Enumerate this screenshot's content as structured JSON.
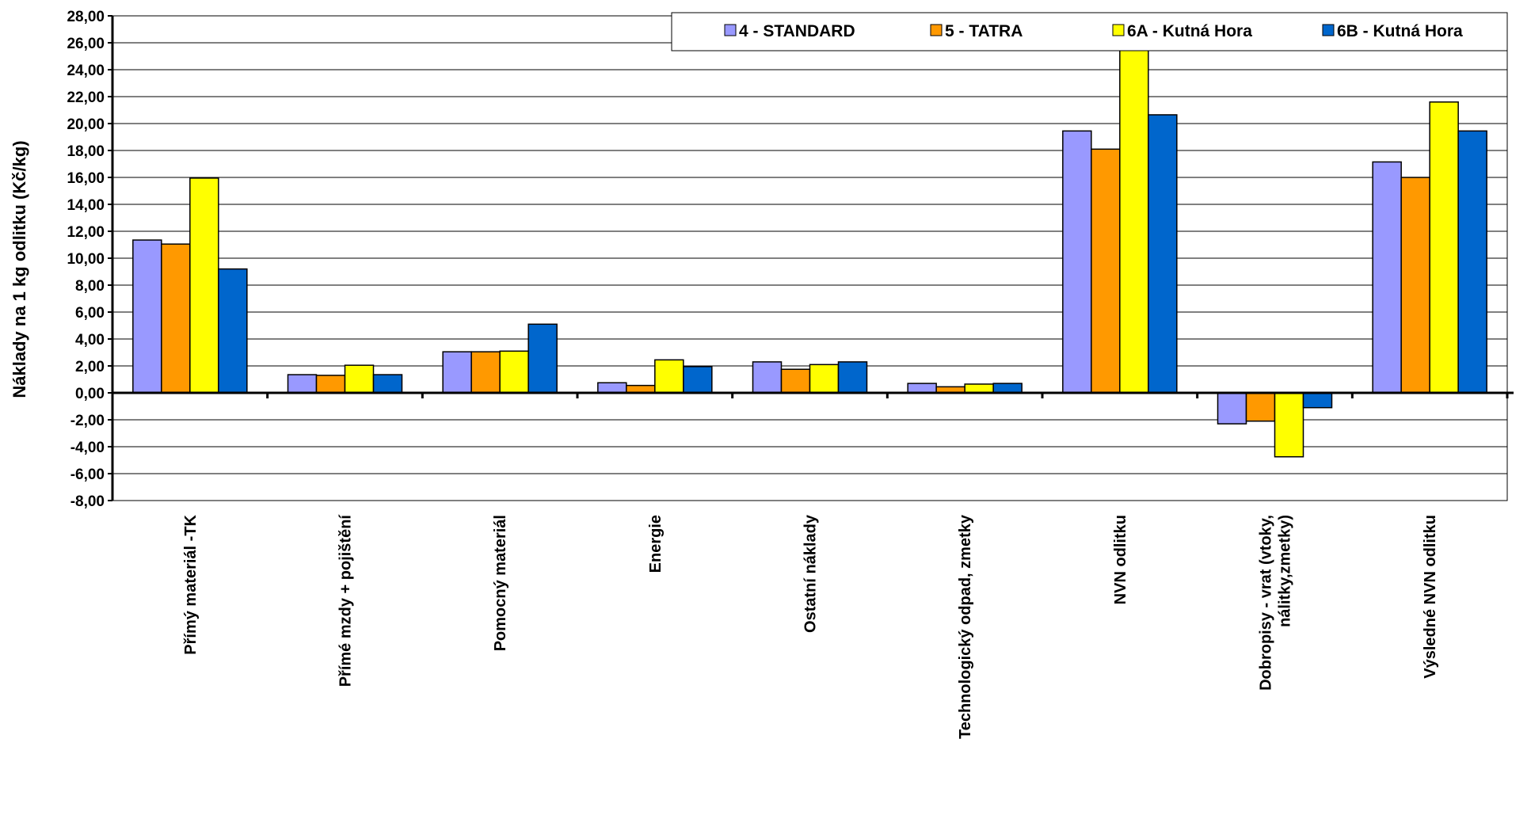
{
  "chart_data": {
    "type": "bar",
    "ylabel": "Náklady na 1 kg odlitku (Kč/kg)",
    "xlabel": "",
    "ylim": [
      -8,
      28
    ],
    "ytick_step": 2,
    "ytick_labels": [
      "-8,00",
      "-6,00",
      "-4,00",
      "-2,00",
      "0,00",
      "2,00",
      "4,00",
      "6,00",
      "8,00",
      "10,00",
      "12,00",
      "14,00",
      "16,00",
      "18,00",
      "20,00",
      "22,00",
      "24,00",
      "26,00",
      "28,00"
    ],
    "grid": true,
    "legend_position": "top-right",
    "categories": [
      [
        "Přímý materiál -TK"
      ],
      [
        "Přímé mzdy + pojištění"
      ],
      [
        "Pomocný materiál"
      ],
      [
        "Energie"
      ],
      [
        "Ostatní náklady"
      ],
      [
        "Technologický odpad, zmetky"
      ],
      [
        "NVN odlitku"
      ],
      [
        "Dobropisy - vrat (vtoky,",
        "nálitky,zmetky)"
      ],
      [
        "Výsledné NVN odlitku"
      ]
    ],
    "series": [
      {
        "name": "4 - STANDARD",
        "color": "#9999ff",
        "values": [
          11.35,
          1.35,
          3.05,
          0.75,
          2.3,
          0.7,
          19.45,
          -2.3,
          17.15
        ]
      },
      {
        "name": "5 - TATRA",
        "color": "#ff9900",
        "values": [
          11.05,
          1.3,
          3.05,
          0.55,
          1.75,
          0.45,
          18.1,
          -2.1,
          16.0
        ]
      },
      {
        "name": "6A - Kutná Hora",
        "color": "#ffff00",
        "values": [
          15.95,
          2.05,
          3.1,
          2.45,
          2.1,
          0.65,
          26.1,
          -4.75,
          21.6
        ]
      },
      {
        "name": "6B - Kutná Hora",
        "color": "#0066cc",
        "values": [
          9.2,
          1.35,
          5.1,
          1.95,
          2.3,
          0.7,
          20.65,
          -1.1,
          19.45
        ]
      }
    ]
  }
}
